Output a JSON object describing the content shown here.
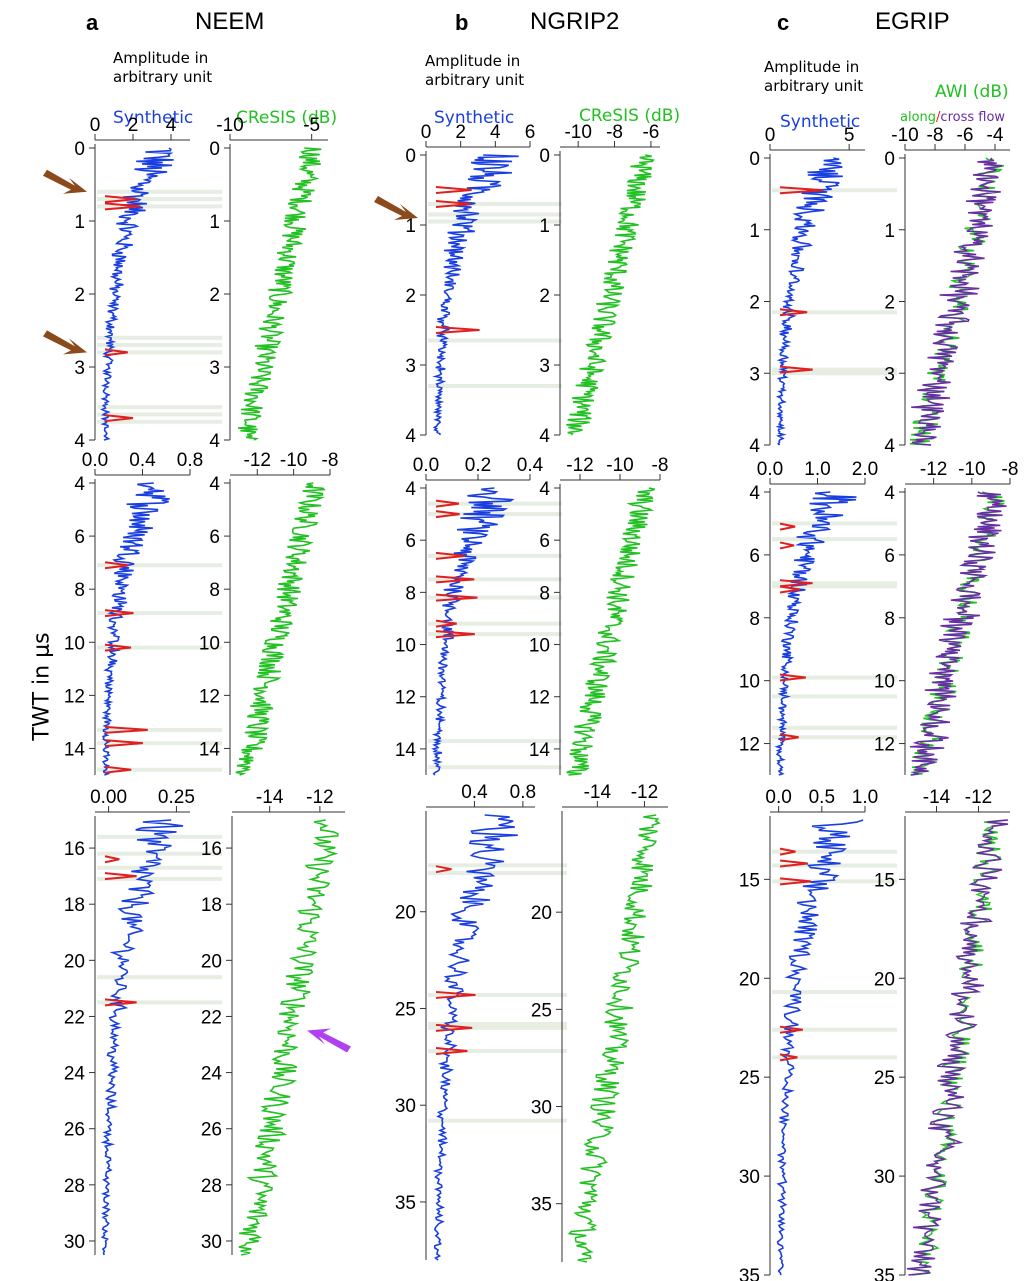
{
  "figure": {
    "ylabel": "TWT in μs",
    "amp_label": "Amplitude in arbitrary unit",
    "colors": {
      "synthetic": "#1a3fe0",
      "cresis": "#22c022",
      "awi_along": "#22c022",
      "awi_cross": "#6a2ba8",
      "highlight": "#e02020",
      "band": "#e6ede2",
      "arrow_brown": "#8b4a1c",
      "arrow_purple": "#b040f0"
    }
  },
  "panels": [
    {
      "letter": "a",
      "name": "NEEM",
      "amp_label": "Amplitude in\narbitrary unit",
      "series_labels": {
        "synthetic": "Synthetic",
        "radar": "CReSIS (dB)"
      }
    },
    {
      "letter": "b",
      "name": "NGRIP2",
      "amp_label": "Amplitude in\narbitrary unit",
      "series_labels": {
        "synthetic": "Synthetic",
        "radar": "CReSIS (dB)"
      }
    },
    {
      "letter": "c",
      "name": "EGRIP",
      "amp_label": "Amplitude in\narbitrary unit",
      "series_labels": {
        "synthetic": "Synthetic",
        "radar": "AWI (dB)",
        "along": "along",
        "slash": "/",
        "cross": "cross flow"
      }
    }
  ],
  "chart_data": [
    {
      "type": "line",
      "panel": "a",
      "series": "Synthetic",
      "y_axis": "TWT in μs",
      "ylim": [
        0,
        4
      ],
      "xlim": [
        0,
        5
      ],
      "xticks": [
        "0",
        "2",
        "4"
      ],
      "yticks": [
        "0",
        "1",
        "2",
        "3",
        "4"
      ],
      "highlight_twt": [
        0.7,
        0.8,
        2.8,
        3.7
      ],
      "bands": [
        0.6,
        0.7,
        0.8,
        2.6,
        2.7,
        2.8,
        3.55,
        3.65,
        3.75
      ],
      "arrows_twt": [
        0.6,
        2.8
      ]
    },
    {
      "type": "line",
      "panel": "a",
      "series": "CReSIS (dB)",
      "ylim": [
        0,
        4
      ],
      "xlim": [
        -10,
        -4
      ],
      "xticks": [
        "-10",
        "-5"
      ],
      "yticks": [
        "0",
        "1",
        "2",
        "3",
        "4"
      ]
    },
    {
      "type": "line",
      "panel": "a",
      "series": "Synthetic",
      "ylim": [
        4,
        15
      ],
      "xlim": [
        0,
        0.8
      ],
      "xticks": [
        "0.0",
        "0.4",
        "0.8"
      ],
      "yticks": [
        "4",
        "6",
        "8",
        "10",
        "12",
        "14"
      ],
      "highlight_twt": [
        7.1,
        8.9,
        10.2,
        13.3,
        13.8,
        14.8
      ],
      "bands": [
        7.1,
        8.9,
        10.2,
        13.3,
        13.8,
        14.8
      ]
    },
    {
      "type": "line",
      "panel": "a",
      "series": "CReSIS (dB)",
      "ylim": [
        4,
        15
      ],
      "xlim": [
        -13.5,
        -8
      ],
      "xticks": [
        "-12",
        "-10",
        "-8"
      ],
      "yticks": [
        "4",
        "6",
        "8",
        "10",
        "12",
        "14"
      ]
    },
    {
      "type": "line",
      "panel": "a",
      "series": "Synthetic",
      "ylim": [
        15,
        30.5
      ],
      "xlim": [
        -0.05,
        0.3
      ],
      "xticks": [
        "0.00",
        "0.25"
      ],
      "yticks": [
        "16",
        "18",
        "20",
        "22",
        "24",
        "26",
        "28",
        "30"
      ],
      "highlight_twt": [
        16.4,
        17.0,
        21.5
      ],
      "bands": [
        15.6,
        16.2,
        16.7,
        17.1,
        20.6,
        21.5
      ]
    },
    {
      "type": "line",
      "panel": "a",
      "series": "CReSIS (dB)",
      "ylim": [
        15,
        30.5
      ],
      "xlim": [
        -15.5,
        -11
      ],
      "xticks": [
        "-14",
        "-12"
      ],
      "yticks": [
        "16",
        "18",
        "20",
        "22",
        "24",
        "26",
        "28",
        "30"
      ],
      "arrows_twt": [
        22.5
      ]
    },
    {
      "type": "line",
      "panel": "b",
      "series": "Synthetic",
      "ylim": [
        0,
        4
      ],
      "xlim": [
        0,
        6
      ],
      "xticks": [
        "0",
        "2",
        "4",
        "6"
      ],
      "yticks": [
        "0",
        "1",
        "2",
        "3",
        "4"
      ],
      "highlight_twt": [
        0.5,
        0.7,
        2.5
      ],
      "bands": [
        0.7,
        0.85,
        0.95,
        2.65,
        3.3
      ],
      "arrows_twt": [
        0.9
      ]
    },
    {
      "type": "line",
      "panel": "b",
      "series": "CReSIS (dB)",
      "ylim": [
        0,
        4
      ],
      "xlim": [
        -11,
        -5.5
      ],
      "xticks": [
        "-10",
        "-8",
        "-6"
      ],
      "yticks": [
        "0",
        "1",
        "2",
        "3",
        "4"
      ]
    },
    {
      "type": "line",
      "panel": "b",
      "series": "Synthetic",
      "ylim": [
        4,
        15
      ],
      "xlim": [
        0,
        0.4
      ],
      "xticks": [
        "0.0",
        "0.2",
        "0.4"
      ],
      "yticks": [
        "4",
        "6",
        "8",
        "10",
        "12",
        "14"
      ],
      "highlight_twt": [
        4.6,
        5.0,
        6.6,
        7.5,
        8.2,
        9.2,
        9.6
      ],
      "bands": [
        4.6,
        5.0,
        6.6,
        7.5,
        8.2,
        9.2,
        9.6,
        13.7,
        14.7
      ]
    },
    {
      "type": "line",
      "panel": "b",
      "series": "CReSIS (dB)",
      "ylim": [
        4,
        15
      ],
      "xlim": [
        -13,
        -8
      ],
      "xticks": [
        "-12",
        "-10",
        "-8"
      ],
      "yticks": [
        "4",
        "6",
        "8",
        "10",
        "12",
        "14"
      ]
    },
    {
      "type": "line",
      "panel": "b",
      "series": "Synthetic",
      "ylim": [
        15,
        38
      ],
      "xlim": [
        0,
        0.9
      ],
      "xticks": [
        "0.4",
        "0.8"
      ],
      "yticks": [
        "20",
        "25",
        "30",
        "35"
      ],
      "highlight_twt": [
        17.8,
        24.3,
        26.0,
        27.2
      ],
      "bands": [
        17.6,
        18.0,
        24.3,
        25.8,
        26.0,
        27.2,
        30.8
      ]
    },
    {
      "type": "line",
      "panel": "b",
      "series": "CReSIS (dB)",
      "ylim": [
        15,
        38
      ],
      "xlim": [
        -15.5,
        -11
      ],
      "xticks": [
        "-14",
        "-12"
      ],
      "yticks": [
        "20",
        "25",
        "30",
        "35"
      ]
    },
    {
      "type": "line",
      "panel": "c",
      "series": "Synthetic",
      "ylim": [
        0,
        4
      ],
      "xlim": [
        0,
        6
      ],
      "xticks": [
        "0",
        "5"
      ],
      "yticks": [
        "0",
        "1",
        "2",
        "3",
        "4"
      ],
      "highlight_twt": [
        0.45,
        2.15,
        2.95
      ],
      "bands": [
        0.45,
        2.15,
        2.95,
        3.0
      ]
    },
    {
      "type": "line",
      "panel": "c",
      "series": "AWI (dB) along/cross flow",
      "ylim": [
        0,
        4
      ],
      "xlim": [
        -10,
        -3
      ],
      "xticks": [
        "-10",
        "-8",
        "-6",
        "-4"
      ],
      "yticks": [
        "0",
        "1",
        "2",
        "3",
        "4"
      ]
    },
    {
      "type": "line",
      "panel": "c",
      "series": "Synthetic",
      "ylim": [
        4,
        13
      ],
      "xlim": [
        0,
        2
      ],
      "xticks": [
        "0.0",
        "1.0",
        "2.0"
      ],
      "yticks": [
        "4",
        "6",
        "8",
        "10",
        "12"
      ],
      "highlight_twt": [
        5.1,
        5.7,
        6.9,
        7.1,
        9.9,
        11.8
      ],
      "bands": [
        5.0,
        5.5,
        6.9,
        7.0,
        9.9,
        10.5,
        11.5,
        11.8
      ]
    },
    {
      "type": "line",
      "panel": "c",
      "series": "AWI (dB) along/cross flow",
      "ylim": [
        4,
        13
      ],
      "xlim": [
        -13.5,
        -8
      ],
      "xticks": [
        "-12",
        "-10",
        "-8"
      ],
      "yticks": [
        "4",
        "6",
        "8",
        "10",
        "12"
      ]
    },
    {
      "type": "line",
      "panel": "c",
      "series": "Synthetic",
      "ylim": [
        12,
        35
      ],
      "xlim": [
        -0.1,
        1.0
      ],
      "xticks": [
        "0.0",
        "0.5",
        "1.0"
      ],
      "yticks": [
        "15",
        "20",
        "25",
        "30",
        "35"
      ],
      "highlight_twt": [
        13.6,
        14.2,
        15.1,
        22.6,
        24.0
      ],
      "bands": [
        13.6,
        14.3,
        15.1,
        20.7,
        22.6,
        24.0
      ]
    },
    {
      "type": "line",
      "panel": "c",
      "series": "AWI (dB) along/cross flow",
      "ylim": [
        12,
        35
      ],
      "xlim": [
        -15.5,
        -10.5
      ],
      "xticks": [
        "-14",
        "-12"
      ],
      "yticks": [
        "15",
        "20",
        "25",
        "30",
        "35"
      ]
    }
  ]
}
